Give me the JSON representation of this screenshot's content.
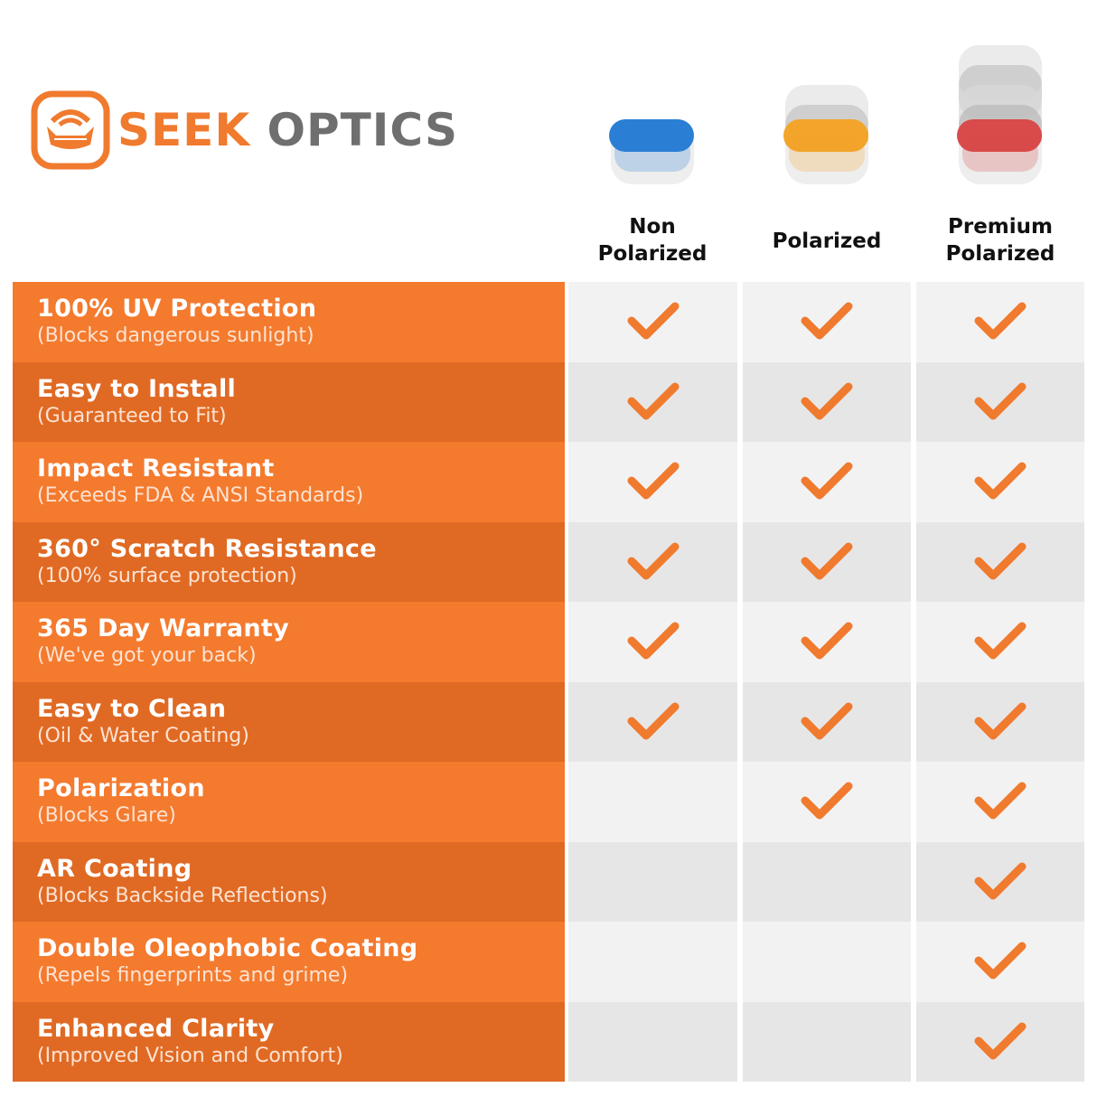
{
  "brand": {
    "name_highlight": "SEEK",
    "name_rest": " OPTICS",
    "logo_text": "SEEK OPTICS"
  },
  "colors": {
    "accent": "#f47a2e",
    "accent_dark": "#e06a24",
    "check": "#f07a2e",
    "cell_light": "#f2f2f2",
    "cell_dark": "#e6e6e6"
  },
  "columns": [
    {
      "label_line1": "Non",
      "label_line2": "Polarized",
      "lens_color": "#2a7fd4"
    },
    {
      "label_line1": "",
      "label_line2": "Polarized",
      "lens_color": "#f2a52a"
    },
    {
      "label_line1": "Premium",
      "label_line2": "Polarized",
      "lens_color": "#d94a4a"
    }
  ],
  "features": [
    {
      "title": "100% UV Protection",
      "subtitle": "(Blocks dangerous sunlight)",
      "checks": [
        true,
        true,
        true
      ]
    },
    {
      "title": "Easy to Install",
      "subtitle": "(Guaranteed to Fit)",
      "checks": [
        true,
        true,
        true
      ]
    },
    {
      "title": "Impact Resistant",
      "subtitle": "(Exceeds FDA & ANSI Standards)",
      "checks": [
        true,
        true,
        true
      ]
    },
    {
      "title": "360° Scratch Resistance",
      "subtitle": "(100% surface protection)",
      "checks": [
        true,
        true,
        true
      ]
    },
    {
      "title": "365 Day Warranty",
      "subtitle": "(We've got your back)",
      "checks": [
        true,
        true,
        true
      ]
    },
    {
      "title": "Easy to Clean",
      "subtitle": "(Oil & Water Coating)",
      "checks": [
        true,
        true,
        true
      ]
    },
    {
      "title": "Polarization",
      "subtitle": "(Blocks Glare)",
      "checks": [
        false,
        true,
        true
      ]
    },
    {
      "title": "AR Coating",
      "subtitle": "(Blocks Backside Reflections)",
      "checks": [
        false,
        false,
        true
      ]
    },
    {
      "title": "Double Oleophobic Coating",
      "subtitle": "(Repels fingerprints and grime)",
      "checks": [
        false,
        false,
        true
      ]
    },
    {
      "title": "Enhanced Clarity",
      "subtitle": "(Improved Vision and Comfort)",
      "checks": [
        false,
        false,
        true
      ]
    }
  ]
}
